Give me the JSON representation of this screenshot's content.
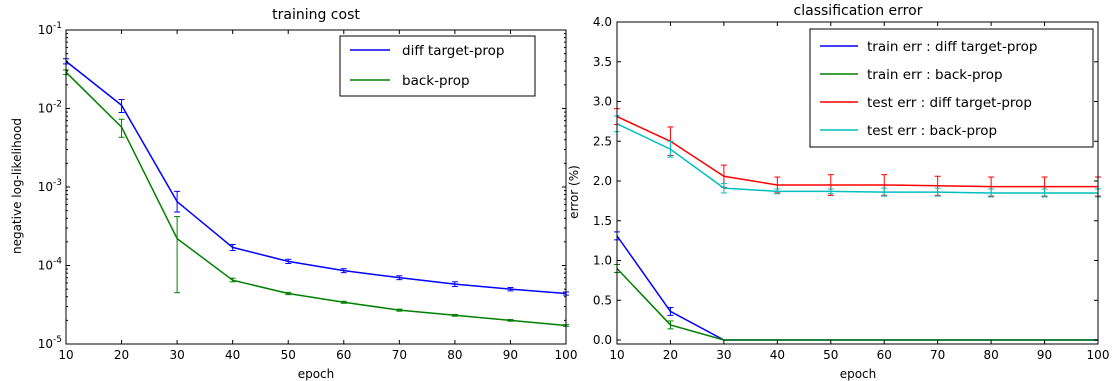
{
  "chart_data": [
    {
      "type": "line",
      "title": "training cost",
      "xlabel": "epoch",
      "ylabel": "negative log-likelihood",
      "yscale": "log",
      "xlim": [
        10,
        100
      ],
      "ylim": [
        1e-05,
        0.1
      ],
      "x": [
        10,
        20,
        30,
        40,
        50,
        60,
        70,
        80,
        90,
        100
      ],
      "x_tick_labels": [
        "10",
        "20",
        "30",
        "40",
        "50",
        "60",
        "70",
        "80",
        "90",
        "100"
      ],
      "y_tick_labels": [
        {
          "base": "10",
          "exp": "-5"
        },
        {
          "base": "10",
          "exp": "-4"
        },
        {
          "base": "10",
          "exp": "-3"
        },
        {
          "base": "10",
          "exp": "-2"
        },
        {
          "base": "10",
          "exp": "-1"
        }
      ],
      "legend_position": "top-right",
      "series": [
        {
          "name": "diff target-prop",
          "color": "#0000ff",
          "values": [
            0.04,
            0.011,
            0.00065,
            0.00017,
            0.000113,
            8.6e-05,
            7e-05,
            5.8e-05,
            5e-05,
            4.4e-05
          ],
          "err_low": [
            0.037,
            0.0089,
            0.00048,
            0.000155,
            0.000106,
            8.1e-05,
            6.6e-05,
            5.4e-05,
            4.75e-05,
            4.2e-05
          ],
          "err_high": [
            0.043,
            0.013,
            0.00088,
            0.000185,
            0.00012,
            9.1e-05,
            7.4e-05,
            6.2e-05,
            5.25e-05,
            4.6e-05
          ]
        },
        {
          "name": "back-prop",
          "color": "#008000",
          "values": [
            0.029,
            0.0058,
            0.00022,
            6.5e-05,
            4.4e-05,
            3.4e-05,
            2.7e-05,
            2.32e-05,
            2e-05,
            1.72e-05
          ],
          "err_low": [
            0.027,
            0.0043,
            4.5e-05,
            6.2e-05,
            4.25e-05,
            3.3e-05,
            2.62e-05,
            2.26e-05,
            1.95e-05,
            1.68e-05
          ],
          "err_high": [
            0.031,
            0.0073,
            0.00042,
            6.9e-05,
            4.55e-05,
            3.5e-05,
            2.78e-05,
            2.38e-05,
            2.05e-05,
            1.76e-05
          ]
        }
      ]
    },
    {
      "type": "line",
      "title": "classification error",
      "xlabel": "epoch",
      "ylabel": "error (%)",
      "xlim": [
        10,
        100
      ],
      "ylim": [
        -0.05,
        4.0
      ],
      "x": [
        10,
        20,
        30,
        40,
        50,
        60,
        70,
        80,
        90,
        100
      ],
      "x_tick_labels": [
        "10",
        "20",
        "30",
        "40",
        "50",
        "60",
        "70",
        "80",
        "90",
        "100"
      ],
      "y_ticks": [
        0.0,
        0.5,
        1.0,
        1.5,
        2.0,
        2.5,
        3.0,
        3.5,
        4.0
      ],
      "y_tick_labels": [
        "0.0",
        "0.5",
        "1.0",
        "1.5",
        "2.0",
        "2.5",
        "3.0",
        "3.5",
        "4.0"
      ],
      "legend_position": "top-right",
      "series": [
        {
          "name": "train err : diff target-prop",
          "color": "#0000ff",
          "values": [
            1.31,
            0.36,
            0.0,
            0.0,
            0.0,
            0.0,
            0.0,
            0.0,
            0.0,
            0.0
          ],
          "err": [
            0.05,
            0.05,
            0.0,
            0.0,
            0.0,
            0.0,
            0.0,
            0.0,
            0.0,
            0.0
          ]
        },
        {
          "name": "train err : back-prop",
          "color": "#008000",
          "values": [
            0.9,
            0.19,
            0.0,
            0.0,
            0.0,
            0.0,
            0.0,
            0.0,
            0.0,
            0.0
          ],
          "err": [
            0.05,
            0.05,
            0.0,
            0.0,
            0.0,
            0.0,
            0.0,
            0.0,
            0.0,
            0.0
          ]
        },
        {
          "name": "test err : diff target-prop",
          "color": "#ff0000",
          "values": [
            2.81,
            2.5,
            2.06,
            1.95,
            1.95,
            1.95,
            1.94,
            1.93,
            1.93,
            1.93
          ],
          "err": [
            0.1,
            0.18,
            0.14,
            0.1,
            0.13,
            0.13,
            0.12,
            0.12,
            0.12,
            0.12
          ]
        },
        {
          "name": "test err : back-prop",
          "color": "#00bfbf",
          "values": [
            2.72,
            2.4,
            1.91,
            1.87,
            1.87,
            1.86,
            1.86,
            1.85,
            1.85,
            1.85
          ],
          "err": [
            0.1,
            0.1,
            0.06,
            0.03,
            0.03,
            0.05,
            0.05,
            0.05,
            0.05,
            0.05
          ]
        }
      ]
    }
  ]
}
